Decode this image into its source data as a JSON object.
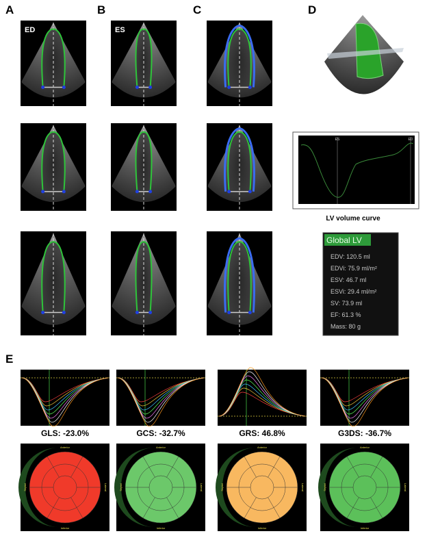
{
  "panel_labels": [
    "A",
    "B",
    "C",
    "D",
    "E"
  ],
  "view_labels": [
    "ED",
    "ES"
  ],
  "volume_curve": {
    "title": "LV volume curve",
    "markers": [
      "ES",
      "ED"
    ]
  },
  "global_lv": {
    "title": "Global LV",
    "items": [
      "EDV: 120.5 ml",
      "EDVi: 75.9 ml/m²",
      "ESV: 46.7 ml",
      "ESVi: 29.4 ml/m²",
      "SV: 73.9 ml",
      "EF: 61.3 %",
      "Mass: 80 g"
    ]
  },
  "strain": [
    {
      "label": "GLS: -23.0%"
    },
    {
      "label": "GCS: -32.7%"
    },
    {
      "label": "GRS: 46.8%"
    },
    {
      "label": "G3DS: -36.7%"
    }
  ],
  "bullseye_labels": [
    "Anterior",
    "Inferior",
    "Septal",
    "Lateral"
  ]
}
